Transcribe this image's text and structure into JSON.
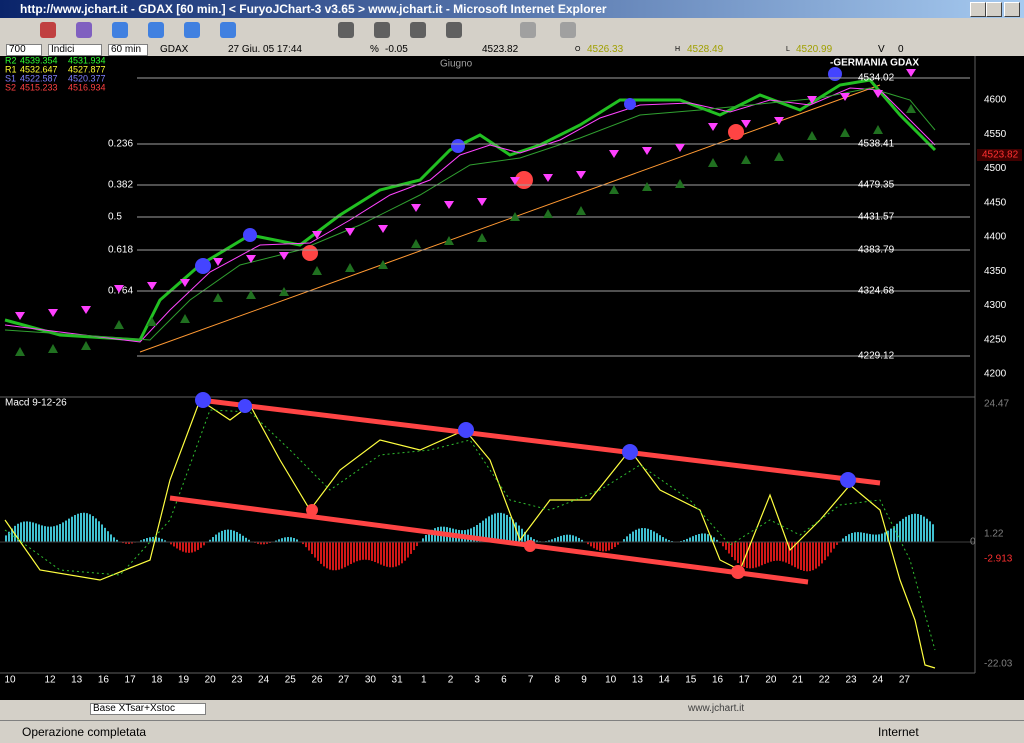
{
  "window": {
    "title": "http://www.jchart.it - GDAX [60 min.] < FuryoJChart-3 v3.65 > www.jchart.it - Microsoft Internet Explorer"
  },
  "info": {
    "bars": "700",
    "group": "Indici",
    "period": "60 min",
    "symbol": "GDAX",
    "datetime": "27 Giu. 05  17:44",
    "pct_label": "%",
    "pct": "-0.05",
    "last": "4523.82",
    "open_label": "O",
    "open": "4526.33",
    "high_label": "H",
    "high": "4528.49",
    "low_label": "L",
    "low": "4520.99",
    "vol_label": "V",
    "vol": "0"
  },
  "pivots": [
    [
      "R2",
      "4539.354",
      "4531.934"
    ],
    [
      "R1",
      "4532.647",
      "4527.877"
    ],
    [
      "S1",
      "4522.587",
      "4520.377"
    ],
    [
      "S2",
      "4515.233",
      "4516.934"
    ]
  ],
  "chart": {
    "month": "Giugno",
    "name": "-GERMANIA GDAX",
    "last_price": "4523.82",
    "fib_labels": [
      "0.236",
      "0.382",
      "0.5",
      "0.618",
      "0.764"
    ],
    "fib_values": [
      "4534.02",
      "4538.41",
      "4479.35",
      "4431.57",
      "4383.79",
      "4324.68",
      "4229.12"
    ],
    "price_ticks": [
      "4600",
      "4550",
      "4500",
      "4450",
      "4400",
      "4350",
      "4300",
      "4250",
      "4200"
    ],
    "macd_title": "Macd 9-12-26",
    "macd_ticks": [
      "24.47",
      "1.22",
      "0",
      "-2.913",
      "-22.03"
    ],
    "dates": [
      "10",
      "12",
      "13",
      "16",
      "17",
      "18",
      "19",
      "20",
      "23",
      "24",
      "25",
      "26",
      "27",
      "30",
      "31",
      "1",
      "2",
      "3",
      "6",
      "7",
      "8",
      "9",
      "10",
      "13",
      "14",
      "15",
      "16",
      "17",
      "20",
      "21",
      "22",
      "23",
      "24",
      "27"
    ]
  },
  "bottom": {
    "template": "Base XTsar+Xstoc",
    "site": "www.jchart.it"
  },
  "status": {
    "text": "Operazione completata",
    "zone": "Internet"
  }
}
